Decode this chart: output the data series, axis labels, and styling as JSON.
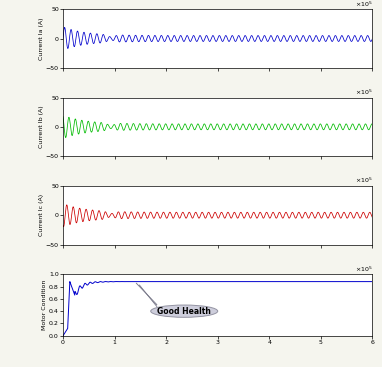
{
  "x_max": 600000,
  "x_ticks": [
    0,
    100000,
    200000,
    300000,
    400000,
    500000,
    600000
  ],
  "x_tick_labels": [
    "0",
    "1",
    "2",
    "3",
    "4",
    "5",
    "6"
  ],
  "current_ylim": [
    -50,
    50
  ],
  "current_yticks": [
    -50,
    0,
    50
  ],
  "motor_ylim": [
    0,
    1
  ],
  "motor_yticks": [
    0,
    0.2,
    0.4,
    0.6,
    0.8,
    1.0
  ],
  "ylabel_ia": "Current Ia (A)",
  "ylabel_ib": "Current Ib (A)",
  "ylabel_ic": "Current Ic (A)",
  "ylabel_motor": "Motor Condition",
  "color_ia": "#0000CC",
  "color_ib": "#00BB00",
  "color_ic": "#CC0000",
  "color_motor": "#0000CC",
  "bg_color": "#FFFFFF",
  "annotation_text": "Good Health",
  "fig_bg": "#F5F5EE"
}
